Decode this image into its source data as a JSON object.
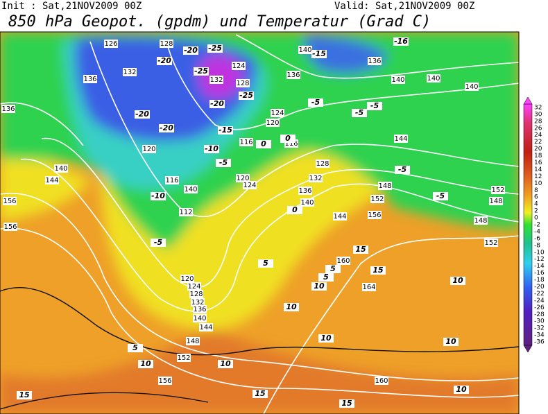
{
  "header": {
    "init": "Init : Sat,21NOV2009 00Z",
    "valid": "Valid: Sat,21NOV2009 00Z",
    "title": "850 hPa Geopot. (gpdm) und Temperatur (Grad C)"
  },
  "colorbar": {
    "labels": [
      32,
      30,
      28,
      26,
      24,
      22,
      20,
      18,
      16,
      14,
      12,
      10,
      8,
      6,
      4,
      2,
      0,
      -2,
      -4,
      -6,
      -8,
      -10,
      -12,
      -14,
      -16,
      -18,
      -20,
      -22,
      -24,
      -26,
      -28,
      -30,
      -32,
      -34,
      -36
    ]
  },
  "map": {
    "geopotential_labels": [
      126,
      128,
      132,
      136,
      136,
      124,
      128,
      132,
      136,
      140,
      136,
      140,
      140,
      124,
      120,
      116,
      116,
      120,
      124,
      120,
      116,
      112,
      140,
      144,
      140,
      144,
      148,
      152,
      156,
      128,
      132,
      136,
      140,
      148,
      152,
      156,
      120,
      124,
      128,
      132,
      136,
      140,
      144,
      148,
      152,
      156,
      160,
      164,
      160,
      156,
      140,
      144,
      148,
      152
    ],
    "temperature_labels": [
      -25,
      -20,
      -20,
      -25,
      -25,
      -20,
      -15,
      -20,
      -20,
      -10,
      -10,
      -5,
      -5,
      0,
      0,
      0,
      -15,
      -5,
      -5,
      -5,
      -5,
      -5,
      5,
      5,
      10,
      10,
      10,
      10,
      15,
      15,
      10,
      10,
      10,
      15,
      15,
      15,
      -16,
      5,
      10,
      5
    ]
  }
}
